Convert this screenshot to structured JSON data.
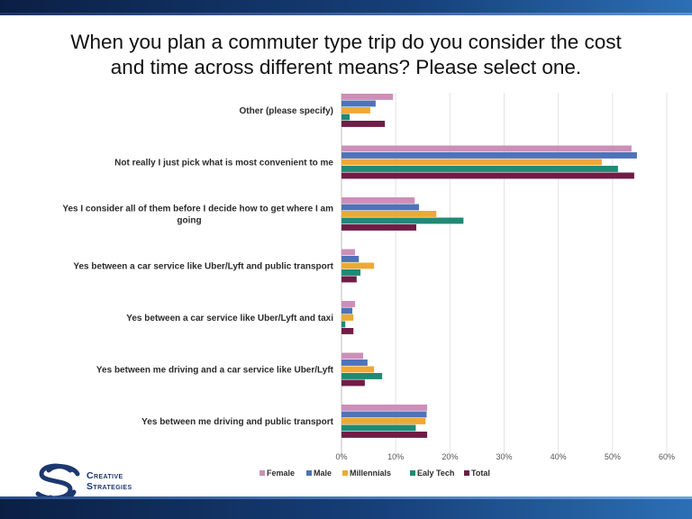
{
  "title_line1": "When you plan a commuter type trip do you consider the cost",
  "title_line2": "and time across different means? Please select one.",
  "logo": {
    "line1": "Creative",
    "line2": "Strategies"
  },
  "colors": {
    "Female": "#cc8fb8",
    "Male": "#4f73b7",
    "Millennials": "#eea934",
    "Ealy Tech": "#1f8a75",
    "Total": "#6e1e46"
  },
  "chart_data": {
    "type": "bar",
    "orientation": "horizontal",
    "title": "When you plan a commuter type trip do you consider the cost and time across different means? Please select one.",
    "xlim": [
      0,
      60
    ],
    "x_ticks": [
      "0%",
      "10%",
      "20%",
      "30%",
      "40%",
      "50%",
      "60%"
    ],
    "legend_position": "bottom",
    "categories": [
      [
        "Other (please specify)"
      ],
      [
        "Not really I just pick what is most convenient to me"
      ],
      [
        "Yes I consider all of them before I decide how to get where I am",
        "going"
      ],
      [
        "Yes between a car service like Uber/Lyft and public transport"
      ],
      [
        "Yes between a car service like Uber/Lyft and taxi"
      ],
      [
        "Yes between me driving and a car service like Uber/Lyft"
      ],
      [
        "Yes between me driving and public transport"
      ]
    ],
    "series": [
      {
        "name": "Female",
        "values": [
          9.5,
          53.5,
          13.5,
          2.5,
          2.5,
          4.0,
          15.8
        ]
      },
      {
        "name": "Male",
        "values": [
          6.3,
          54.5,
          14.3,
          3.2,
          2.0,
          4.8,
          15.7
        ]
      },
      {
        "name": "Millennials",
        "values": [
          5.3,
          48.0,
          17.5,
          6.0,
          2.2,
          6.0,
          15.5
        ]
      },
      {
        "name": "Ealy Tech",
        "values": [
          1.5,
          51.0,
          22.5,
          3.5,
          0.7,
          7.5,
          13.7
        ]
      },
      {
        "name": "Total",
        "values": [
          8.0,
          54.0,
          13.8,
          2.8,
          2.2,
          4.3,
          15.8
        ]
      }
    ]
  }
}
